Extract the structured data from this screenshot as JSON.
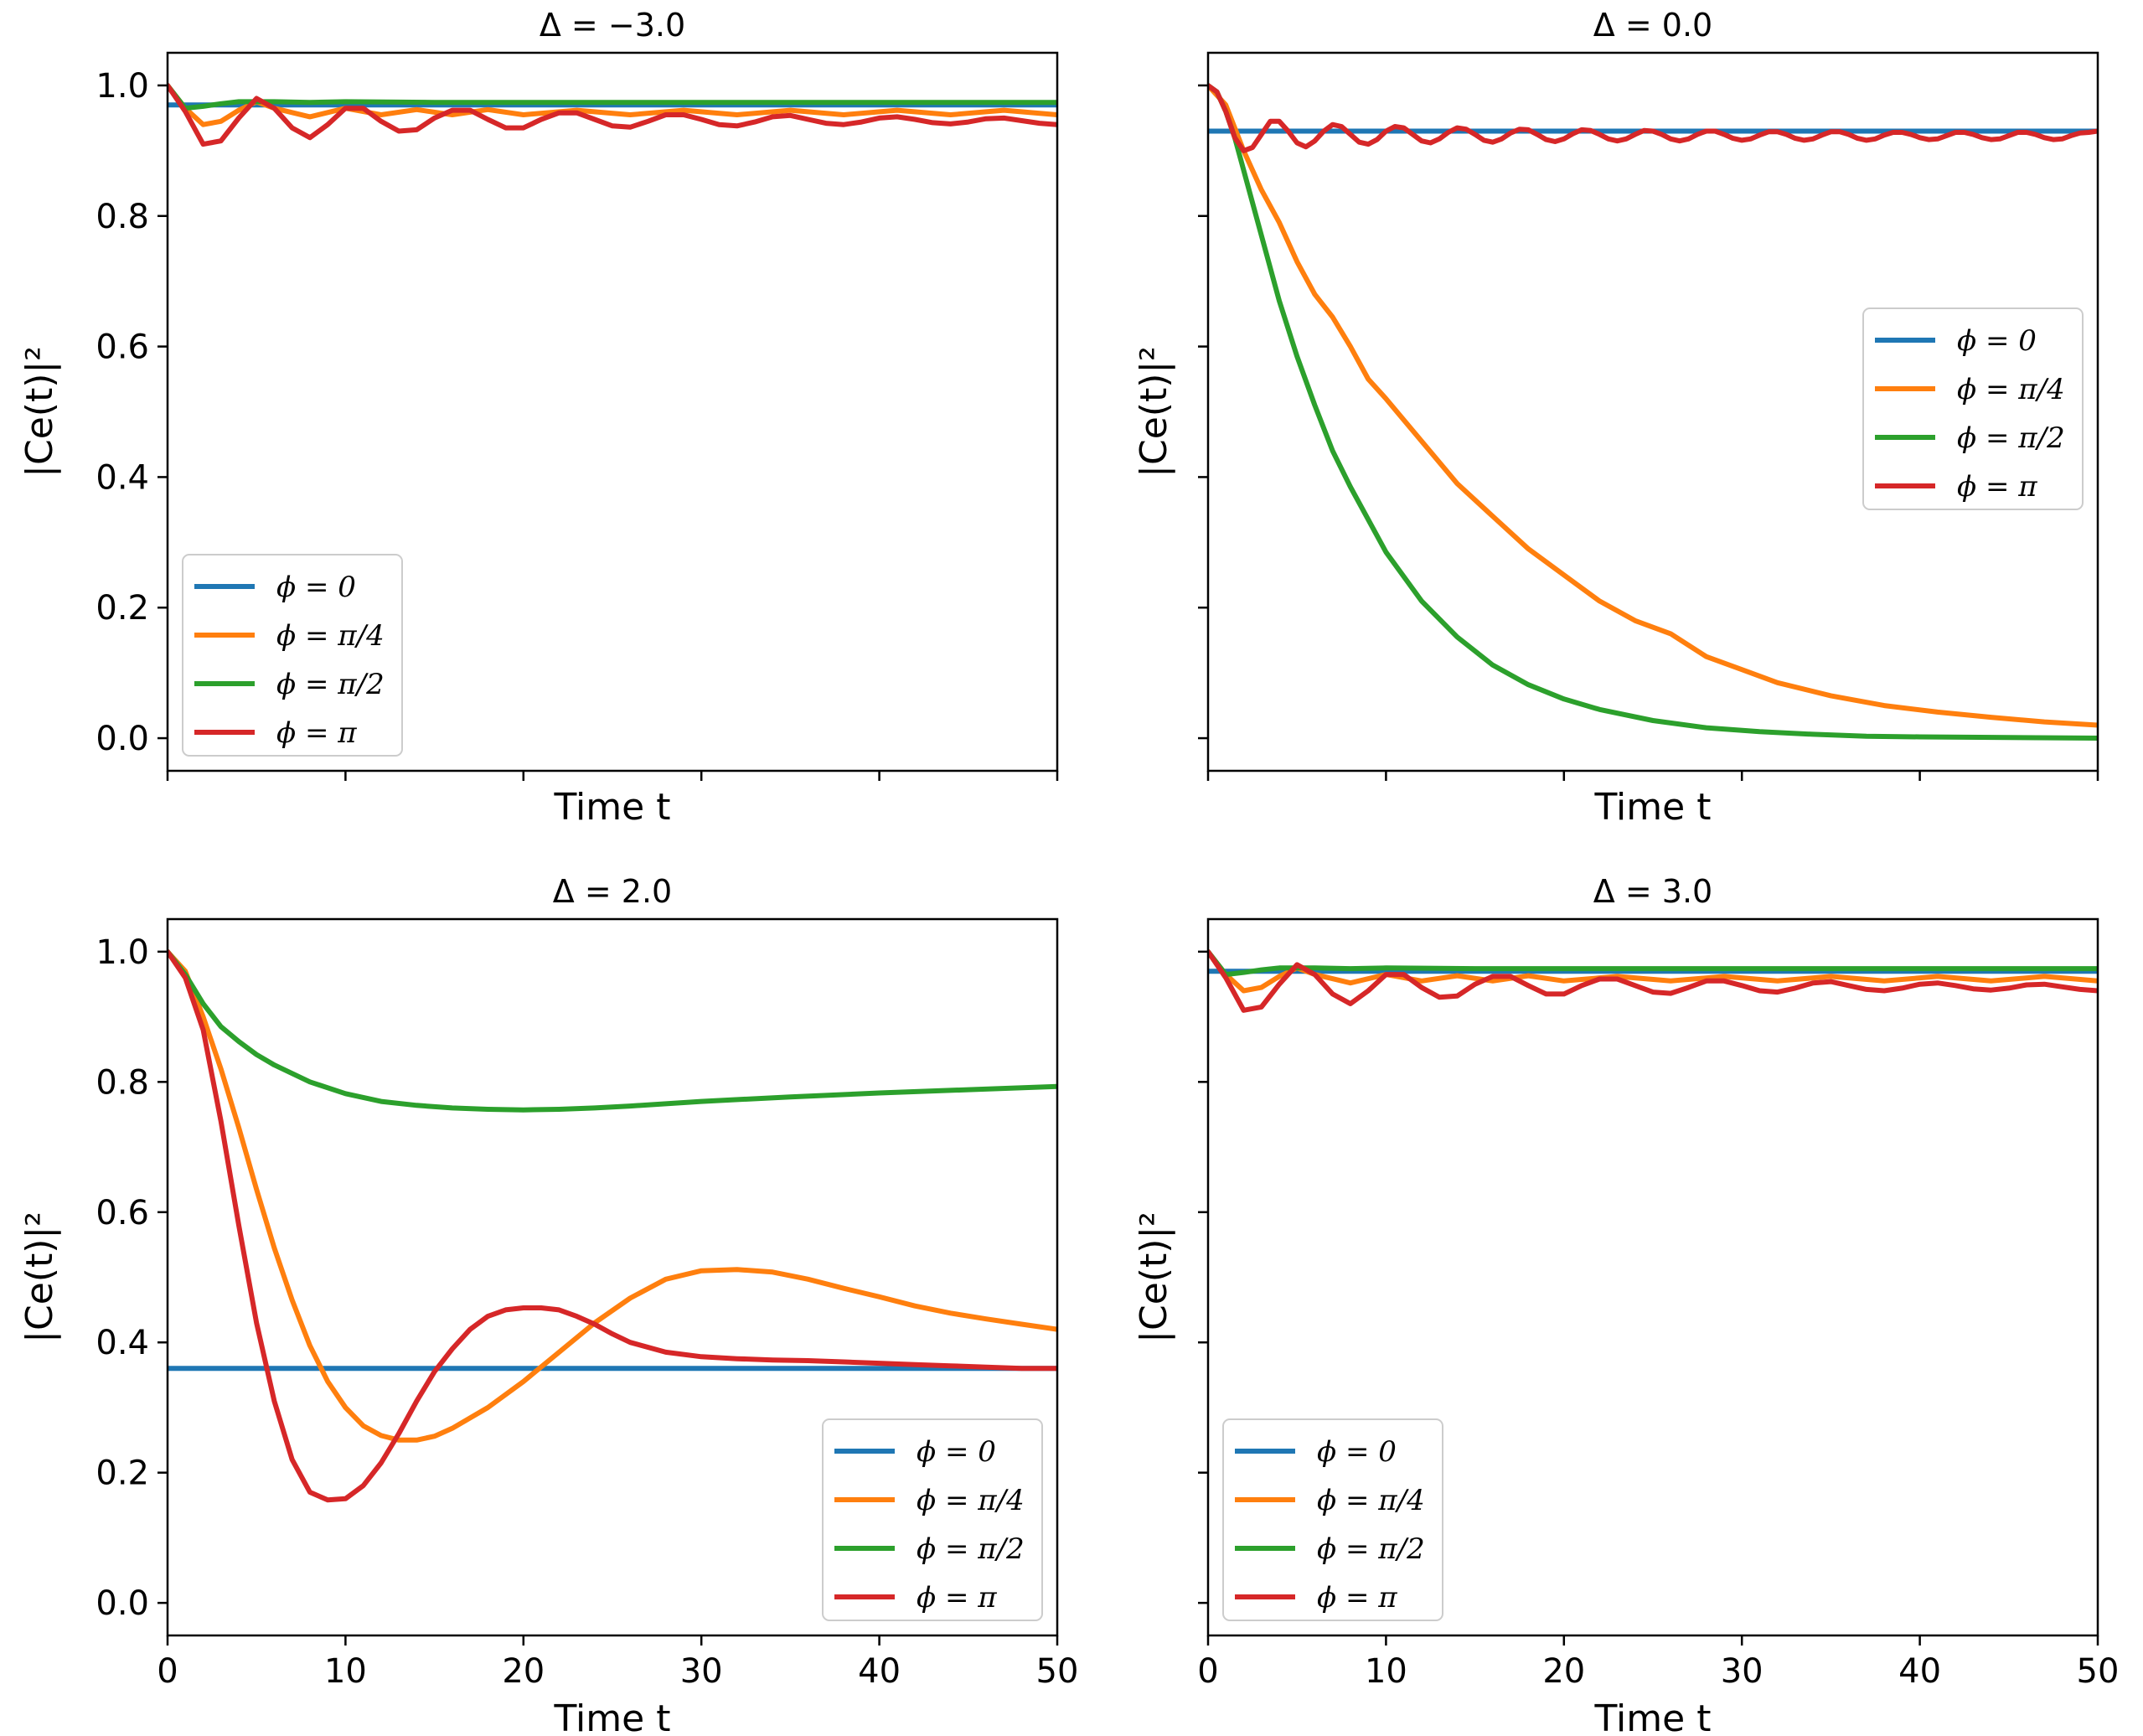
{
  "chart_data": [
    {
      "type": "line",
      "title": "Δ = −3.0",
      "xlabel": "Time t",
      "ylabel": "|Ce(t)|²",
      "xlim": [
        0,
        50
      ],
      "ylim": [
        -0.05,
        1.05
      ],
      "xticks": [
        0,
        10,
        20,
        30,
        40,
        50
      ],
      "yticks": [
        "0.0",
        "0.2",
        "0.4",
        "0.6",
        "0.8",
        "1.0"
      ],
      "show_x_ticklabels": false,
      "show_y_ticklabels": true,
      "legend_position": "lower-left",
      "series": [
        {
          "name": "ϕ = 0",
          "color": "#1f77b4",
          "x": [
            0,
            50
          ],
          "y": [
            0.97,
            0.97
          ]
        },
        {
          "name": "ϕ = π/4",
          "color": "#ff7f0e",
          "x": [
            0,
            1,
            2,
            3,
            4,
            5,
            6,
            8,
            10,
            12,
            14,
            16,
            18,
            20,
            23,
            26,
            29,
            32,
            35,
            38,
            41,
            44,
            47,
            50
          ],
          "y": [
            1.0,
            0.965,
            0.94,
            0.945,
            0.962,
            0.975,
            0.965,
            0.952,
            0.965,
            0.955,
            0.963,
            0.955,
            0.963,
            0.955,
            0.962,
            0.955,
            0.962,
            0.955,
            0.962,
            0.955,
            0.962,
            0.955,
            0.962,
            0.955
          ]
        },
        {
          "name": "ϕ = π/2",
          "color": "#2ca02c",
          "x": [
            0,
            1,
            2,
            3,
            4,
            6,
            8,
            10,
            15,
            20,
            30,
            40,
            50
          ],
          "y": [
            1.0,
            0.965,
            0.968,
            0.972,
            0.975,
            0.975,
            0.974,
            0.975,
            0.974,
            0.974,
            0.974,
            0.974,
            0.974
          ]
        },
        {
          "name": "ϕ = π",
          "color": "#d62728",
          "x": [
            0,
            1,
            2,
            3,
            4,
            5,
            6,
            7,
            8,
            9,
            10,
            11,
            12,
            13,
            14,
            15,
            16,
            17,
            18,
            19,
            20,
            21,
            22,
            23,
            24,
            25,
            26,
            27,
            28,
            29,
            30,
            31,
            32,
            33,
            34,
            35,
            36,
            37,
            38,
            39,
            40,
            41,
            42,
            43,
            44,
            45,
            46,
            47,
            48,
            49,
            50
          ],
          "y": [
            1.0,
            0.96,
            0.91,
            0.915,
            0.95,
            0.98,
            0.965,
            0.935,
            0.92,
            0.94,
            0.965,
            0.965,
            0.945,
            0.93,
            0.932,
            0.95,
            0.962,
            0.962,
            0.948,
            0.935,
            0.935,
            0.948,
            0.958,
            0.958,
            0.948,
            0.938,
            0.936,
            0.945,
            0.955,
            0.955,
            0.948,
            0.94,
            0.938,
            0.944,
            0.952,
            0.954,
            0.948,
            0.942,
            0.94,
            0.944,
            0.95,
            0.952,
            0.948,
            0.943,
            0.941,
            0.944,
            0.949,
            0.95,
            0.946,
            0.942,
            0.94
          ]
        }
      ]
    },
    {
      "type": "line",
      "title": "Δ = 0.0",
      "xlabel": "Time t",
      "ylabel": "|Ce(t)|²",
      "xlim": [
        0,
        50
      ],
      "ylim": [
        -0.05,
        1.05
      ],
      "xticks": [
        0,
        10,
        20,
        30,
        40,
        50
      ],
      "yticks": [
        "0.0",
        "0.2",
        "0.4",
        "0.6",
        "0.8",
        "1.0"
      ],
      "show_x_ticklabels": false,
      "show_y_ticklabels": false,
      "legend_position": "upper-right",
      "series": [
        {
          "name": "ϕ = 0",
          "color": "#1f77b4",
          "x": [
            0,
            50
          ],
          "y": [
            0.93,
            0.93
          ]
        },
        {
          "name": "ϕ = π/4",
          "color": "#ff7f0e",
          "x": [
            0,
            1,
            2,
            3,
            4,
            5,
            6,
            7,
            8,
            9,
            10,
            12,
            14,
            16,
            18,
            20,
            22,
            24,
            26,
            28,
            30,
            32,
            35,
            38,
            41,
            44,
            47,
            50
          ],
          "y": [
            1.0,
            0.97,
            0.9,
            0.84,
            0.79,
            0.73,
            0.68,
            0.645,
            0.6,
            0.55,
            0.52,
            0.455,
            0.39,
            0.34,
            0.29,
            0.25,
            0.21,
            0.18,
            0.16,
            0.125,
            0.105,
            0.085,
            0.065,
            0.05,
            0.04,
            0.032,
            0.025,
            0.02
          ]
        },
        {
          "name": "ϕ = π/2",
          "color": "#2ca02c",
          "x": [
            0,
            0.5,
            1,
            1.5,
            2,
            3,
            4,
            5,
            6,
            7,
            8,
            10,
            12,
            14,
            16,
            18,
            20,
            22,
            25,
            28,
            31,
            34,
            37,
            40,
            45,
            50
          ],
          "y": [
            1.0,
            0.99,
            0.96,
            0.92,
            0.87,
            0.77,
            0.67,
            0.585,
            0.51,
            0.44,
            0.385,
            0.285,
            0.21,
            0.155,
            0.112,
            0.082,
            0.06,
            0.044,
            0.027,
            0.016,
            0.01,
            0.006,
            0.003,
            0.002,
            0.001,
            0.0
          ]
        },
        {
          "name": "ϕ = π",
          "color": "#d62728",
          "x": [
            0,
            0.5,
            1,
            1.5,
            2,
            2.5,
            3,
            3.5,
            4,
            4.5,
            5,
            5.5,
            6,
            6.5,
            7,
            7.5,
            8,
            8.5,
            9,
            9.5,
            10,
            10.5,
            11,
            11.5,
            12,
            12.5,
            13,
            13.5,
            14,
            14.5,
            15,
            15.5,
            16,
            16.5,
            17,
            17.5,
            18,
            18.5,
            19,
            19.5,
            20,
            20.5,
            21,
            21.5,
            22,
            22.5,
            23,
            23.5,
            24,
            24.5,
            25,
            25.5,
            26,
            26.5,
            27,
            27.5,
            28,
            28.5,
            29,
            29.5,
            30,
            30.5,
            31,
            31.5,
            32,
            32.5,
            33,
            33.5,
            34,
            34.5,
            35,
            35.5,
            36,
            36.5,
            37,
            37.5,
            38,
            38.5,
            39,
            39.5,
            40,
            40.5,
            41,
            41.5,
            42,
            42.5,
            43,
            43.5,
            44,
            44.5,
            45,
            45.5,
            46,
            46.5,
            47,
            47.5,
            48,
            48.5,
            49,
            49.5,
            50
          ],
          "y": [
            1.0,
            0.99,
            0.96,
            0.92,
            0.9,
            0.905,
            0.925,
            0.945,
            0.945,
            0.93,
            0.912,
            0.906,
            0.915,
            0.93,
            0.94,
            0.937,
            0.925,
            0.913,
            0.91,
            0.917,
            0.93,
            0.937,
            0.935,
            0.925,
            0.915,
            0.912,
            0.918,
            0.928,
            0.935,
            0.933,
            0.925,
            0.916,
            0.913,
            0.918,
            0.927,
            0.933,
            0.932,
            0.925,
            0.917,
            0.914,
            0.918,
            0.926,
            0.932,
            0.931,
            0.925,
            0.918,
            0.915,
            0.918,
            0.925,
            0.931,
            0.93,
            0.925,
            0.918,
            0.915,
            0.918,
            0.925,
            0.93,
            0.93,
            0.925,
            0.919,
            0.916,
            0.918,
            0.924,
            0.929,
            0.929,
            0.925,
            0.919,
            0.916,
            0.918,
            0.924,
            0.929,
            0.929,
            0.925,
            0.919,
            0.916,
            0.918,
            0.924,
            0.928,
            0.928,
            0.925,
            0.92,
            0.917,
            0.918,
            0.923,
            0.928,
            0.928,
            0.925,
            0.92,
            0.917,
            0.918,
            0.923,
            0.928,
            0.928,
            0.925,
            0.92,
            0.917,
            0.918,
            0.923,
            0.927,
            0.928,
            0.93
          ]
        }
      ]
    },
    {
      "type": "line",
      "title": "Δ = 2.0",
      "xlabel": "Time t",
      "ylabel": "|Ce(t)|²",
      "xlim": [
        0,
        50
      ],
      "ylim": [
        -0.05,
        1.05
      ],
      "xticks": [
        0,
        10,
        20,
        30,
        40,
        50
      ],
      "xticklabels": [
        "0",
        "10",
        "20",
        "30",
        "40",
        "50"
      ],
      "yticks": [
        "0.0",
        "0.2",
        "0.4",
        "0.6",
        "0.8",
        "1.0"
      ],
      "show_x_ticklabels": true,
      "show_y_ticklabels": true,
      "legend_position": "lower-right",
      "series": [
        {
          "name": "ϕ = 0",
          "color": "#1f77b4",
          "x": [
            0,
            50
          ],
          "y": [
            0.36,
            0.36
          ]
        },
        {
          "name": "ϕ = π/4",
          "color": "#ff7f0e",
          "x": [
            0,
            1,
            2,
            3,
            4,
            5,
            6,
            7,
            8,
            9,
            10,
            11,
            12,
            13,
            14,
            15,
            16,
            18,
            20,
            22,
            24,
            26,
            28,
            30,
            32,
            34,
            36,
            38,
            40,
            42,
            44,
            46,
            48,
            50
          ],
          "y": [
            1.0,
            0.97,
            0.9,
            0.82,
            0.73,
            0.635,
            0.545,
            0.465,
            0.395,
            0.34,
            0.3,
            0.272,
            0.257,
            0.25,
            0.25,
            0.256,
            0.268,
            0.3,
            0.34,
            0.385,
            0.43,
            0.468,
            0.497,
            0.51,
            0.512,
            0.508,
            0.497,
            0.483,
            0.47,
            0.456,
            0.445,
            0.436,
            0.428,
            0.42
          ]
        },
        {
          "name": "ϕ = π/2",
          "color": "#2ca02c",
          "x": [
            0,
            1,
            2,
            3,
            4,
            5,
            6,
            8,
            10,
            12,
            14,
            16,
            18,
            20,
            22,
            24,
            26,
            30,
            35,
            40,
            45,
            50
          ],
          "y": [
            1.0,
            0.965,
            0.92,
            0.885,
            0.862,
            0.842,
            0.826,
            0.8,
            0.782,
            0.77,
            0.764,
            0.76,
            0.758,
            0.757,
            0.758,
            0.76,
            0.763,
            0.77,
            0.777,
            0.783,
            0.788,
            0.793
          ]
        },
        {
          "name": "ϕ = π",
          "color": "#d62728",
          "x": [
            0,
            1,
            2,
            3,
            4,
            5,
            6,
            7,
            8,
            9,
            10,
            11,
            12,
            13,
            14,
            15,
            16,
            17,
            18,
            19,
            20,
            21,
            22,
            23,
            24,
            25,
            26,
            28,
            30,
            32,
            34,
            36,
            38,
            40,
            42,
            44,
            46,
            48,
            50
          ],
          "y": [
            1.0,
            0.96,
            0.88,
            0.74,
            0.58,
            0.43,
            0.31,
            0.22,
            0.17,
            0.158,
            0.16,
            0.18,
            0.215,
            0.26,
            0.31,
            0.355,
            0.39,
            0.42,
            0.44,
            0.45,
            0.453,
            0.453,
            0.45,
            0.44,
            0.428,
            0.413,
            0.4,
            0.385,
            0.378,
            0.375,
            0.373,
            0.372,
            0.37,
            0.368,
            0.366,
            0.364,
            0.362,
            0.36,
            0.36
          ]
        }
      ]
    },
    {
      "type": "line",
      "title": "Δ = 3.0",
      "xlabel": "Time t",
      "ylabel": "|Ce(t)|²",
      "xlim": [
        0,
        50
      ],
      "ylim": [
        -0.05,
        1.05
      ],
      "xticks": [
        0,
        10,
        20,
        30,
        40,
        50
      ],
      "xticklabels": [
        "0",
        "10",
        "20",
        "30",
        "40",
        "50"
      ],
      "yticks": [
        "0.0",
        "0.2",
        "0.4",
        "0.6",
        "0.8",
        "1.0"
      ],
      "show_x_ticklabels": true,
      "show_y_ticklabels": false,
      "legend_position": "lower-left",
      "series": [
        {
          "name": "ϕ = 0",
          "color": "#1f77b4",
          "x": [
            0,
            50
          ],
          "y": [
            0.97,
            0.97
          ]
        },
        {
          "name": "ϕ = π/4",
          "color": "#ff7f0e",
          "x": [
            0,
            1,
            2,
            3,
            4,
            5,
            6,
            8,
            10,
            12,
            14,
            16,
            18,
            20,
            23,
            26,
            29,
            32,
            35,
            38,
            41,
            44,
            47,
            50
          ],
          "y": [
            1.0,
            0.965,
            0.94,
            0.945,
            0.962,
            0.975,
            0.965,
            0.952,
            0.965,
            0.955,
            0.963,
            0.955,
            0.963,
            0.955,
            0.962,
            0.955,
            0.962,
            0.955,
            0.962,
            0.955,
            0.962,
            0.955,
            0.962,
            0.955
          ]
        },
        {
          "name": "ϕ = π/2",
          "color": "#2ca02c",
          "x": [
            0,
            1,
            2,
            3,
            4,
            6,
            8,
            10,
            15,
            20,
            30,
            40,
            50
          ],
          "y": [
            1.0,
            0.965,
            0.968,
            0.972,
            0.975,
            0.975,
            0.974,
            0.975,
            0.974,
            0.974,
            0.974,
            0.974,
            0.974
          ]
        },
        {
          "name": "ϕ = π",
          "color": "#d62728",
          "x": [
            0,
            1,
            2,
            3,
            4,
            5,
            6,
            7,
            8,
            9,
            10,
            11,
            12,
            13,
            14,
            15,
            16,
            17,
            18,
            19,
            20,
            21,
            22,
            23,
            24,
            25,
            26,
            27,
            28,
            29,
            30,
            31,
            32,
            33,
            34,
            35,
            36,
            37,
            38,
            39,
            40,
            41,
            42,
            43,
            44,
            45,
            46,
            47,
            48,
            49,
            50
          ],
          "y": [
            1.0,
            0.96,
            0.91,
            0.915,
            0.95,
            0.98,
            0.965,
            0.935,
            0.92,
            0.94,
            0.965,
            0.965,
            0.945,
            0.93,
            0.932,
            0.95,
            0.962,
            0.962,
            0.948,
            0.935,
            0.935,
            0.948,
            0.958,
            0.958,
            0.948,
            0.938,
            0.936,
            0.945,
            0.955,
            0.955,
            0.948,
            0.94,
            0.938,
            0.944,
            0.952,
            0.954,
            0.948,
            0.942,
            0.94,
            0.944,
            0.95,
            0.952,
            0.948,
            0.943,
            0.941,
            0.944,
            0.949,
            0.95,
            0.946,
            0.942,
            0.94
          ]
        }
      ]
    }
  ]
}
